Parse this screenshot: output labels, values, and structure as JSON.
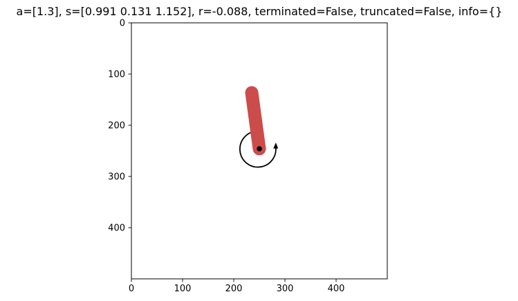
{
  "title": "a=[1.3], s=[0.991 0.131 1.152], r=-0.088, terminated=False, truncated=False, info={}",
  "axes": {
    "x_tick_labels": [
      "0",
      "100",
      "200",
      "300",
      "400"
    ],
    "y_tick_labels": [
      "0",
      "100",
      "200",
      "300",
      "400"
    ],
    "xlim": [
      0,
      500
    ],
    "ylim": [
      500,
      0
    ],
    "background": "#ffffff"
  },
  "scene": {
    "pivot": [
      250,
      250
    ],
    "pendulum_tip": [
      235,
      134
    ],
    "rod_color": "#cc4c4c",
    "pivot_color": "#000000",
    "torque_arrow": "counterclockwise",
    "torque_arrow_color": "#000000"
  }
}
